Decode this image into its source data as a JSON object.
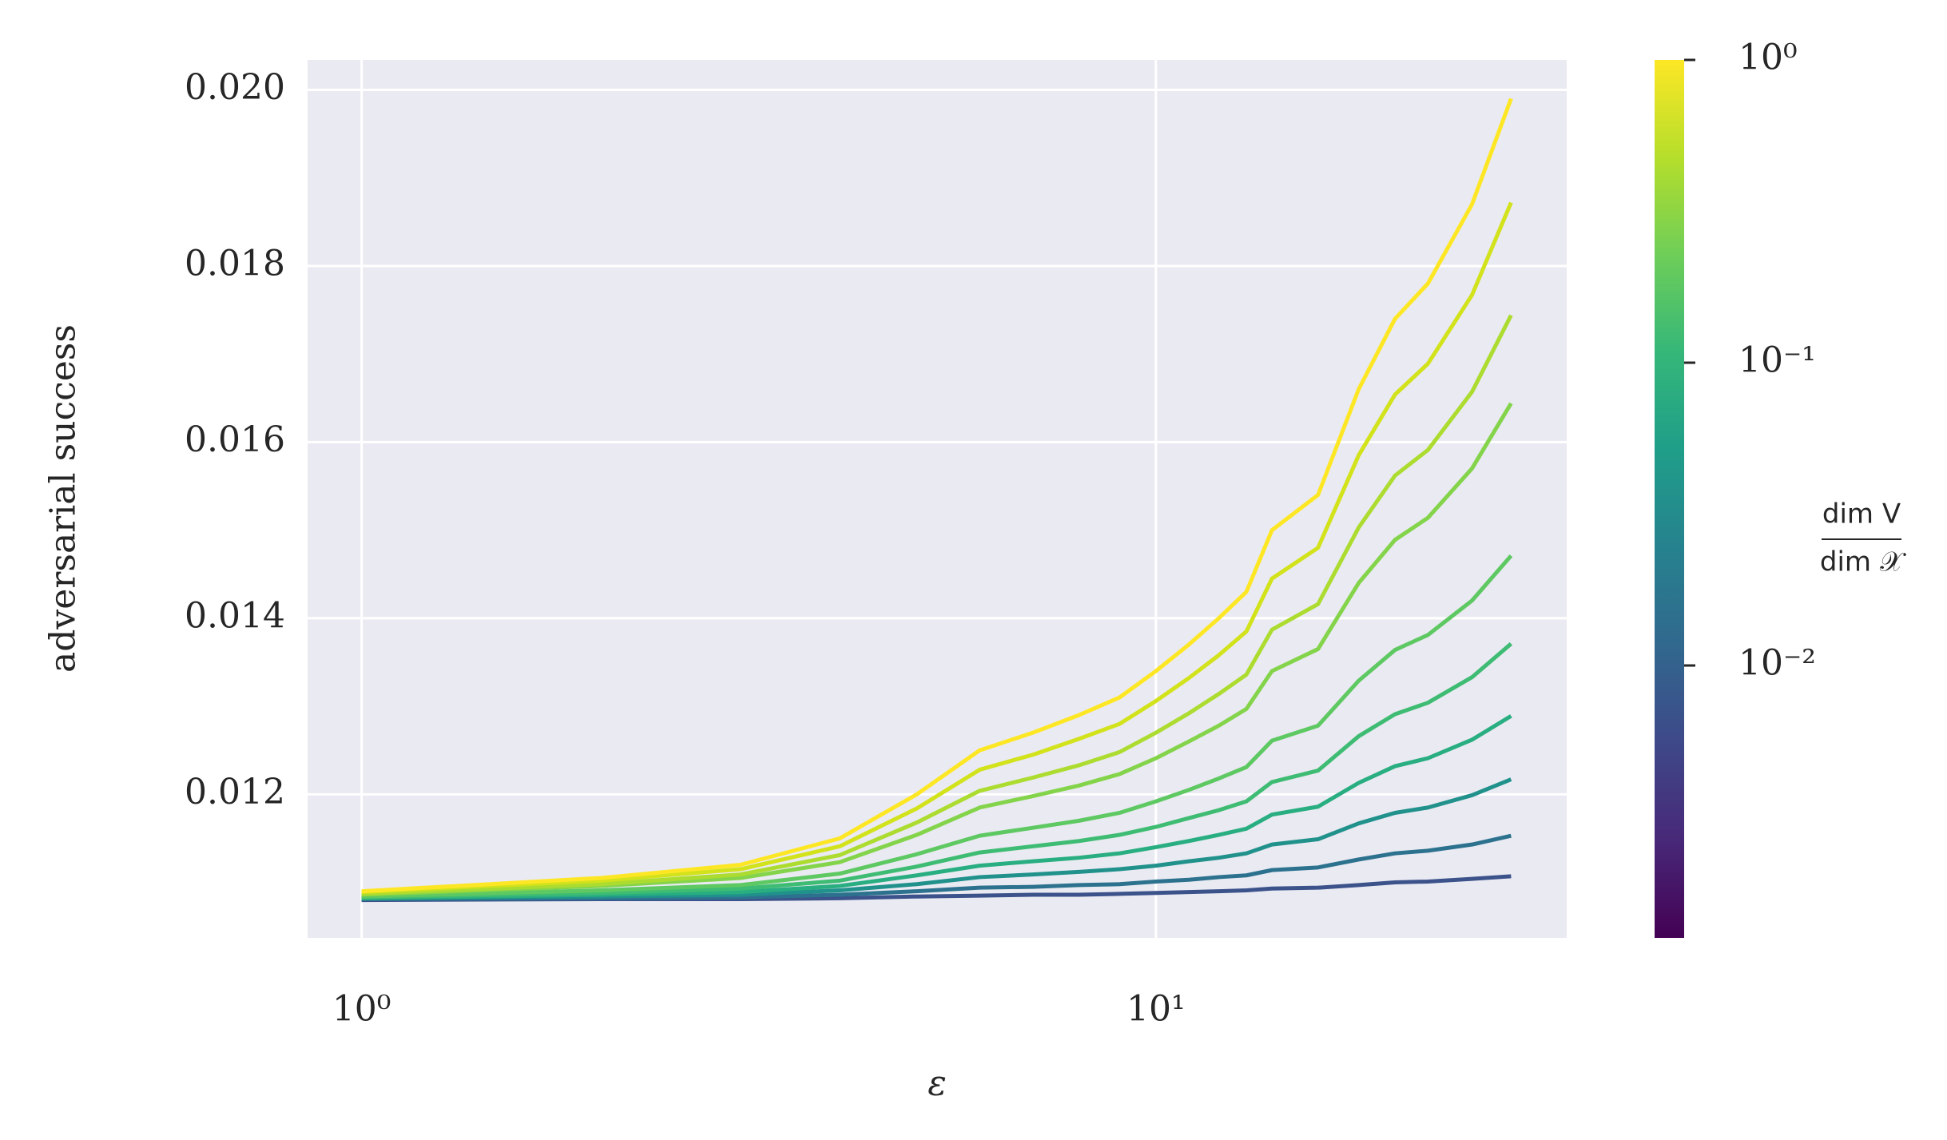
{
  "chart_data": {
    "type": "line",
    "xlabel": "ε",
    "ylabel": "adversarial success",
    "xscale": "log",
    "x": [
      1,
      2,
      3,
      4,
      5,
      6,
      7,
      8,
      9,
      10,
      11,
      12,
      13,
      14,
      16,
      18,
      20,
      22,
      25,
      28
    ],
    "xlim": [
      0.855,
      32.9
    ],
    "xticks": [
      {
        "value": 1,
        "label": "10⁰"
      },
      {
        "value": 10,
        "label": "10¹"
      }
    ],
    "ylim": [
      0.01037,
      0.02034
    ],
    "yticks": [
      0.012,
      0.014,
      0.016,
      {
        "value": 0.02,
        "label": "0.020"
      },
      0.018
    ],
    "grid": true,
    "background": "#eaeaf2",
    "series": [
      {
        "color": "#fde725",
        "values": [
          0.0109,
          0.01105,
          0.0112,
          0.0115,
          0.012,
          0.0125,
          0.0127,
          0.0129,
          0.0131,
          0.0134,
          0.0137,
          0.014,
          0.0143,
          0.015,
          0.0154,
          0.0166,
          0.0174,
          0.0178,
          0.0187,
          0.0199
        ]
      },
      {
        "color": "#d2e21b",
        "values": [
          0.01089,
          0.01102,
          0.01115,
          0.01141,
          0.01184,
          0.01228,
          0.01245,
          0.01263,
          0.0128,
          0.01306,
          0.01332,
          0.01358,
          0.01385,
          0.01445,
          0.0148,
          0.01585,
          0.01654,
          0.01689,
          0.01767,
          0.01872
        ]
      },
      {
        "color": "#addc30",
        "values": [
          0.01087,
          0.01098,
          0.01109,
          0.01131,
          0.01168,
          0.01204,
          0.01219,
          0.01233,
          0.01248,
          0.0127,
          0.01292,
          0.01314,
          0.01336,
          0.01387,
          0.01416,
          0.01503,
          0.01562,
          0.01591,
          0.01657,
          0.01744
        ]
      },
      {
        "color": "#84d44b",
        "values": [
          0.01086,
          0.01096,
          0.01105,
          0.01123,
          0.01154,
          0.01185,
          0.01198,
          0.0121,
          0.01223,
          0.01241,
          0.0126,
          0.01278,
          0.01297,
          0.0134,
          0.01365,
          0.0144,
          0.01489,
          0.01514,
          0.0157,
          0.01644
        ]
      },
      {
        "color": "#5ec962",
        "values": [
          0.01084,
          0.01091,
          0.01097,
          0.0111,
          0.01132,
          0.01153,
          0.01162,
          0.0117,
          0.01179,
          0.01192,
          0.01205,
          0.01218,
          0.01231,
          0.01261,
          0.01278,
          0.01329,
          0.01364,
          0.01381,
          0.0142,
          0.01471
        ]
      },
      {
        "color": "#3fbc73",
        "values": [
          0.01083,
          0.01088,
          0.01093,
          0.01102,
          0.01118,
          0.01134,
          0.01141,
          0.01147,
          0.01154,
          0.01163,
          0.01173,
          0.01182,
          0.01192,
          0.01214,
          0.01227,
          0.01266,
          0.01291,
          0.01304,
          0.01333,
          0.01371
        ]
      },
      {
        "color": "#28ae80",
        "values": [
          0.01082,
          0.01086,
          0.01089,
          0.01096,
          0.01108,
          0.01119,
          0.01124,
          0.01128,
          0.01133,
          0.0114,
          0.01147,
          0.01154,
          0.01161,
          0.01177,
          0.01186,
          0.01213,
          0.01232,
          0.01241,
          0.01262,
          0.01289
        ]
      },
      {
        "color": "#21918c",
        "values": [
          0.01082,
          0.01084,
          0.01086,
          0.01091,
          0.01098,
          0.01106,
          0.01109,
          0.01112,
          0.01115,
          0.01119,
          0.01124,
          0.01128,
          0.01133,
          0.01143,
          0.01149,
          0.01167,
          0.01179,
          0.01185,
          0.01199,
          0.01217
        ]
      },
      {
        "color": "#2c728e",
        "values": [
          0.01081,
          0.01082,
          0.01083,
          0.01086,
          0.0109,
          0.01094,
          0.01095,
          0.01097,
          0.01098,
          0.01101,
          0.01103,
          0.01106,
          0.01108,
          0.01114,
          0.01117,
          0.01126,
          0.01133,
          0.01136,
          0.01143,
          0.01153
        ]
      },
      {
        "color": "#3b528b",
        "values": [
          0.0108,
          0.01081,
          0.01081,
          0.01082,
          0.01084,
          0.01085,
          0.01086,
          0.01086,
          0.01087,
          0.01088,
          0.01089,
          0.0109,
          0.01091,
          0.01093,
          0.01094,
          0.01097,
          0.011,
          0.01101,
          0.01104,
          0.01107
        ]
      }
    ],
    "colorbar": {
      "scale": "log",
      "lim": [
        0.00126,
        1
      ],
      "colormap": [
        "#440154",
        "#482878",
        "#3e4989",
        "#31688e",
        "#26828e",
        "#1f9e89",
        "#35b779",
        "#6ece58",
        "#b5de2b",
        "#fde725"
      ],
      "ticks": [
        {
          "value": 1,
          "label": "10⁰"
        },
        {
          "value": 0.1,
          "label": "10⁻¹"
        },
        {
          "value": 0.01,
          "label": "10⁻²"
        }
      ],
      "label": [
        "dim V",
        "dim 𝒳"
      ]
    }
  }
}
